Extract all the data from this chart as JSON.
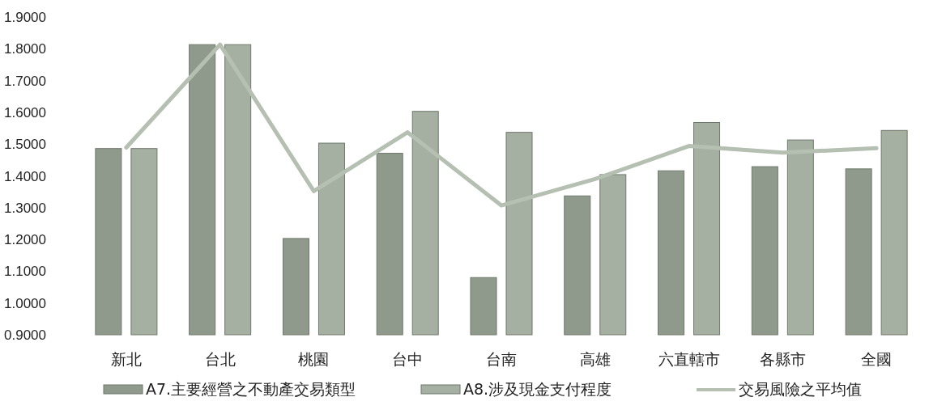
{
  "chart_data": {
    "type": "bar",
    "categories": [
      "新北",
      "台北",
      "桃園",
      "台中",
      "台南",
      "高雄",
      "六直轄市",
      "各縣市",
      "全國"
    ],
    "series": [
      {
        "name": "A7.主要經營之不動產交易類型",
        "color": "#8f9a8c",
        "values": [
          1.486,
          1.813,
          1.203,
          1.471,
          1.08,
          1.337,
          1.416,
          1.429,
          1.422
        ]
      },
      {
        "name": "A8.涉及現金支付程度",
        "color": "#a6b0a2",
        "values": [
          1.486,
          1.813,
          1.503,
          1.603,
          1.537,
          1.404,
          1.568,
          1.513,
          1.543
        ]
      },
      {
        "name": "交易風險之平均值",
        "type": "line",
        "color": "#b5bfb2",
        "values": [
          1.489,
          1.813,
          1.352,
          1.537,
          1.307,
          1.39,
          1.494,
          1.473,
          1.487
        ]
      }
    ],
    "ylim": [
      0.9,
      1.9
    ],
    "yticks": [
      {
        "value": 0.9,
        "label": "0.9000"
      },
      {
        "value": 1.0,
        "label": "1.0000"
      },
      {
        "value": 1.1,
        "label": "1.1000"
      },
      {
        "value": 1.2,
        "label": "1.2000"
      },
      {
        "value": 1.3,
        "label": "1.3000"
      },
      {
        "value": 1.4,
        "label": "1.4000"
      },
      {
        "value": 1.5,
        "label": "1.5000"
      },
      {
        "value": 1.6,
        "label": "1.6000"
      },
      {
        "value": 1.7,
        "label": "1.7000"
      },
      {
        "value": 1.8,
        "label": "1.8000"
      },
      {
        "value": 1.9,
        "label": "1.9000"
      }
    ],
    "legend": "bottom"
  }
}
